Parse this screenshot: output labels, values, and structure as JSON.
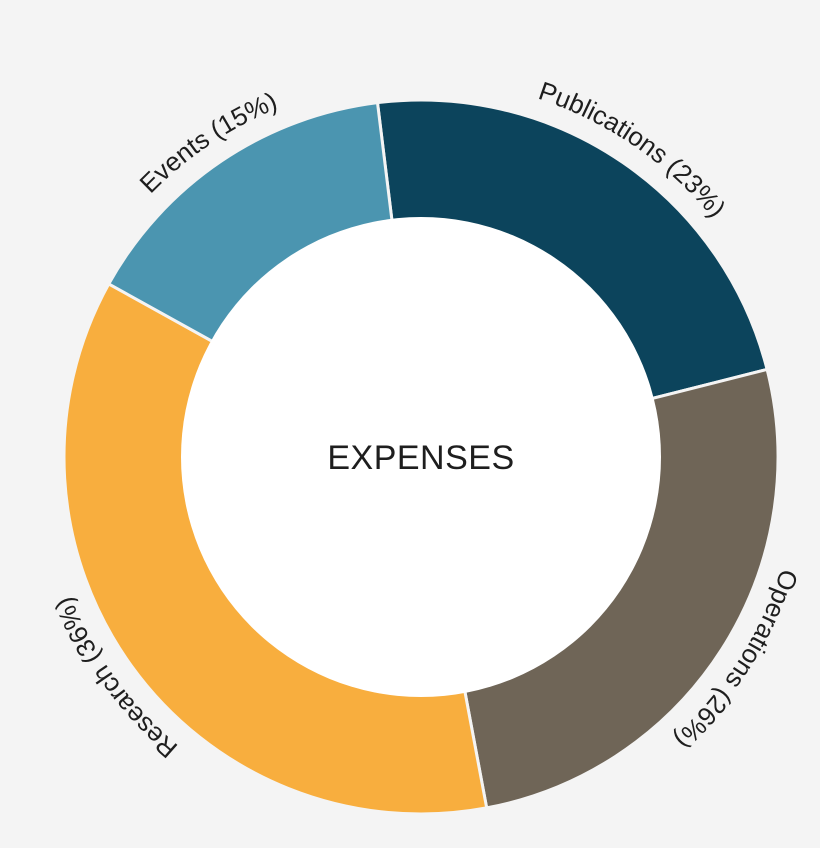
{
  "chart_data": {
    "type": "pie",
    "center_label": "EXPENSES",
    "slices": [
      {
        "label": "Publications",
        "value": 23,
        "display": "Publications (23%)",
        "color": "#0c445c"
      },
      {
        "label": "Operations",
        "value": 26,
        "display": "Operations (26%)",
        "color": "#6f6557"
      },
      {
        "label": "Research",
        "value": 36,
        "display": "Research (36%)",
        "color": "#f8ae3e"
      },
      {
        "label": "Events",
        "value": 15,
        "display": "Events (15%)",
        "color": "#4b95b0"
      }
    ]
  }
}
